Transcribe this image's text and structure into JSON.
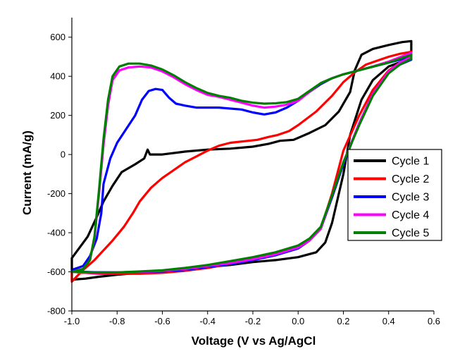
{
  "chart_data": {
    "type": "line",
    "xlabel": "Voltage (V vs Ag/AgCl",
    "ylabel": "Current (mA/g)",
    "xlim": [
      -1.0,
      0.6
    ],
    "ylim": [
      -800,
      700
    ],
    "x_ticks": [
      "-1.0",
      "-0.8",
      "-0.6",
      "-0.4",
      "-0.2",
      "0.0",
      "0.2",
      "0.4",
      "0.6"
    ],
    "y_ticks": [
      "-800",
      "-600",
      "-400",
      "-200",
      "0",
      "200",
      "400",
      "600"
    ],
    "grid": false,
    "legend_position": "right",
    "series": [
      {
        "name": "Cycle 1",
        "color": "#000000",
        "points": [
          [
            -1.0,
            -530
          ],
          [
            -0.93,
            -420
          ],
          [
            -0.89,
            -320
          ],
          [
            -0.86,
            -240
          ],
          [
            -0.82,
            -160
          ],
          [
            -0.78,
            -90
          ],
          [
            -0.72,
            -50
          ],
          [
            -0.68,
            -20
          ],
          [
            -0.665,
            25
          ],
          [
            -0.655,
            0
          ],
          [
            -0.6,
            0
          ],
          [
            -0.5,
            15
          ],
          [
            -0.4,
            25
          ],
          [
            -0.3,
            30
          ],
          [
            -0.2,
            40
          ],
          [
            -0.13,
            55
          ],
          [
            -0.08,
            70
          ],
          [
            -0.02,
            75
          ],
          [
            0.05,
            110
          ],
          [
            0.12,
            150
          ],
          [
            0.18,
            220
          ],
          [
            0.23,
            320
          ],
          [
            0.25,
            430
          ],
          [
            0.28,
            510
          ],
          [
            0.33,
            540
          ],
          [
            0.4,
            560
          ],
          [
            0.46,
            575
          ],
          [
            0.5,
            580
          ],
          [
            0.5,
            500
          ],
          [
            0.47,
            480
          ],
          [
            0.4,
            450
          ],
          [
            0.33,
            380
          ],
          [
            0.28,
            280
          ],
          [
            0.23,
            100
          ],
          [
            0.2,
            -100
          ],
          [
            0.15,
            -350
          ],
          [
            0.12,
            -450
          ],
          [
            0.08,
            -500
          ],
          [
            0.0,
            -525
          ],
          [
            -0.1,
            -540
          ],
          [
            -0.2,
            -550
          ],
          [
            -0.3,
            -565
          ],
          [
            -0.4,
            -575
          ],
          [
            -0.5,
            -585
          ],
          [
            -0.6,
            -595
          ],
          [
            -0.7,
            -605
          ],
          [
            -0.8,
            -615
          ],
          [
            -0.88,
            -625
          ],
          [
            -0.94,
            -635
          ],
          [
            -1.0,
            -640
          ]
        ]
      },
      {
        "name": "Cycle 2",
        "color": "#ff0000",
        "points": [
          [
            -1.0,
            -650
          ],
          [
            -0.95,
            -590
          ],
          [
            -0.9,
            -540
          ],
          [
            -0.82,
            -440
          ],
          [
            -0.77,
            -370
          ],
          [
            -0.73,
            -300
          ],
          [
            -0.7,
            -240
          ],
          [
            -0.65,
            -170
          ],
          [
            -0.6,
            -120
          ],
          [
            -0.55,
            -80
          ],
          [
            -0.5,
            -40
          ],
          [
            -0.45,
            -10
          ],
          [
            -0.4,
            20
          ],
          [
            -0.35,
            45
          ],
          [
            -0.3,
            60
          ],
          [
            -0.22,
            70
          ],
          [
            -0.18,
            75
          ],
          [
            -0.13,
            90
          ],
          [
            -0.09,
            100
          ],
          [
            -0.04,
            120
          ],
          [
            0.0,
            150
          ],
          [
            0.08,
            220
          ],
          [
            0.15,
            300
          ],
          [
            0.2,
            370
          ],
          [
            0.25,
            420
          ],
          [
            0.3,
            460
          ],
          [
            0.35,
            480
          ],
          [
            0.4,
            500
          ],
          [
            0.45,
            515
          ],
          [
            0.5,
            525
          ],
          [
            0.5,
            495
          ],
          [
            0.45,
            470
          ],
          [
            0.4,
            430
          ],
          [
            0.33,
            330
          ],
          [
            0.27,
            200
          ],
          [
            0.2,
            20
          ],
          [
            0.15,
            -200
          ],
          [
            0.1,
            -380
          ],
          [
            0.05,
            -440
          ],
          [
            0.0,
            -480
          ],
          [
            -0.1,
            -515
          ],
          [
            -0.2,
            -540
          ],
          [
            -0.3,
            -560
          ],
          [
            -0.4,
            -580
          ],
          [
            -0.5,
            -595
          ],
          [
            -0.6,
            -605
          ],
          [
            -0.7,
            -610
          ],
          [
            -0.8,
            -610
          ],
          [
            -0.88,
            -610
          ],
          [
            -0.94,
            -605
          ],
          [
            -1.0,
            -600
          ]
        ]
      },
      {
        "name": "Cycle 3",
        "color": "#0000ff",
        "points": [
          [
            -1.0,
            -590
          ],
          [
            -0.95,
            -570
          ],
          [
            -0.92,
            -520
          ],
          [
            -0.89,
            -430
          ],
          [
            -0.87,
            -300
          ],
          [
            -0.86,
            -150
          ],
          [
            -0.83,
            -20
          ],
          [
            -0.8,
            60
          ],
          [
            -0.76,
            130
          ],
          [
            -0.72,
            200
          ],
          [
            -0.69,
            280
          ],
          [
            -0.66,
            325
          ],
          [
            -0.63,
            335
          ],
          [
            -0.6,
            330
          ],
          [
            -0.57,
            290
          ],
          [
            -0.54,
            260
          ],
          [
            -0.5,
            250
          ],
          [
            -0.45,
            240
          ],
          [
            -0.35,
            240
          ],
          [
            -0.25,
            230
          ],
          [
            -0.2,
            215
          ],
          [
            -0.15,
            205
          ],
          [
            -0.1,
            215
          ],
          [
            -0.05,
            240
          ],
          [
            0.0,
            275
          ],
          [
            0.05,
            320
          ],
          [
            0.1,
            360
          ],
          [
            0.15,
            390
          ],
          [
            0.2,
            410
          ],
          [
            0.3,
            440
          ],
          [
            0.4,
            470
          ],
          [
            0.5,
            500
          ],
          [
            0.5,
            485
          ],
          [
            0.45,
            460
          ],
          [
            0.4,
            420
          ],
          [
            0.33,
            310
          ],
          [
            0.27,
            160
          ],
          [
            0.2,
            -50
          ],
          [
            0.15,
            -220
          ],
          [
            0.1,
            -380
          ],
          [
            0.05,
            -440
          ],
          [
            0.0,
            -480
          ],
          [
            -0.1,
            -515
          ],
          [
            -0.2,
            -540
          ],
          [
            -0.3,
            -560
          ],
          [
            -0.4,
            -575
          ],
          [
            -0.5,
            -590
          ],
          [
            -0.6,
            -598
          ],
          [
            -0.7,
            -600
          ],
          [
            -0.8,
            -603
          ],
          [
            -0.9,
            -602
          ],
          [
            -0.96,
            -600
          ],
          [
            -1.0,
            -595
          ]
        ]
      },
      {
        "name": "Cycle 4",
        "color": "#ff00ff",
        "points": [
          [
            -1.0,
            -600
          ],
          [
            -0.95,
            -585
          ],
          [
            -0.92,
            -540
          ],
          [
            -0.9,
            -430
          ],
          [
            -0.88,
            -200
          ],
          [
            -0.86,
            50
          ],
          [
            -0.84,
            250
          ],
          [
            -0.82,
            380
          ],
          [
            -0.79,
            430
          ],
          [
            -0.75,
            445
          ],
          [
            -0.7,
            450
          ],
          [
            -0.65,
            445
          ],
          [
            -0.6,
            425
          ],
          [
            -0.55,
            395
          ],
          [
            -0.5,
            360
          ],
          [
            -0.45,
            330
          ],
          [
            -0.4,
            305
          ],
          [
            -0.35,
            295
          ],
          [
            -0.3,
            280
          ],
          [
            -0.25,
            265
          ],
          [
            -0.2,
            250
          ],
          [
            -0.15,
            240
          ],
          [
            -0.1,
            245
          ],
          [
            -0.05,
            255
          ],
          [
            0.0,
            275
          ],
          [
            0.05,
            320
          ],
          [
            0.1,
            365
          ],
          [
            0.15,
            390
          ],
          [
            0.2,
            410
          ],
          [
            0.3,
            440
          ],
          [
            0.4,
            475
          ],
          [
            0.5,
            520
          ],
          [
            0.5,
            500
          ],
          [
            0.45,
            470
          ],
          [
            0.4,
            425
          ],
          [
            0.33,
            310
          ],
          [
            0.27,
            160
          ],
          [
            0.2,
            -40
          ],
          [
            0.15,
            -210
          ],
          [
            0.1,
            -380
          ],
          [
            0.05,
            -440
          ],
          [
            0.0,
            -475
          ],
          [
            -0.1,
            -510
          ],
          [
            -0.2,
            -535
          ],
          [
            -0.3,
            -555
          ],
          [
            -0.4,
            -570
          ],
          [
            -0.5,
            -585
          ],
          [
            -0.6,
            -595
          ],
          [
            -0.7,
            -600
          ],
          [
            -0.8,
            -603
          ],
          [
            -0.9,
            -605
          ],
          [
            -0.96,
            -603
          ],
          [
            -1.0,
            -600
          ]
        ]
      },
      {
        "name": "Cycle 5",
        "color": "#008000",
        "points": [
          [
            -1.0,
            -600
          ],
          [
            -0.95,
            -585
          ],
          [
            -0.92,
            -540
          ],
          [
            -0.9,
            -420
          ],
          [
            -0.88,
            -180
          ],
          [
            -0.86,
            80
          ],
          [
            -0.84,
            280
          ],
          [
            -0.82,
            400
          ],
          [
            -0.79,
            450
          ],
          [
            -0.75,
            465
          ],
          [
            -0.7,
            465
          ],
          [
            -0.65,
            455
          ],
          [
            -0.6,
            435
          ],
          [
            -0.55,
            405
          ],
          [
            -0.5,
            370
          ],
          [
            -0.45,
            340
          ],
          [
            -0.4,
            315
          ],
          [
            -0.35,
            300
          ],
          [
            -0.3,
            290
          ],
          [
            -0.25,
            275
          ],
          [
            -0.2,
            265
          ],
          [
            -0.15,
            260
          ],
          [
            -0.1,
            262
          ],
          [
            -0.05,
            268
          ],
          [
            0.0,
            285
          ],
          [
            0.05,
            325
          ],
          [
            0.1,
            365
          ],
          [
            0.15,
            390
          ],
          [
            0.2,
            410
          ],
          [
            0.3,
            440
          ],
          [
            0.4,
            470
          ],
          [
            0.5,
            510
          ],
          [
            0.5,
            490
          ],
          [
            0.45,
            460
          ],
          [
            0.4,
            415
          ],
          [
            0.33,
            300
          ],
          [
            0.27,
            150
          ],
          [
            0.2,
            -40
          ],
          [
            0.15,
            -210
          ],
          [
            0.1,
            -370
          ],
          [
            0.05,
            -430
          ],
          [
            0.0,
            -465
          ],
          [
            -0.1,
            -500
          ],
          [
            -0.2,
            -525
          ],
          [
            -0.3,
            -545
          ],
          [
            -0.4,
            -565
          ],
          [
            -0.5,
            -580
          ],
          [
            -0.6,
            -592
          ],
          [
            -0.7,
            -598
          ],
          [
            -0.8,
            -603
          ],
          [
            -0.9,
            -603
          ],
          [
            -0.96,
            -600
          ],
          [
            -1.0,
            -598
          ]
        ]
      }
    ]
  }
}
